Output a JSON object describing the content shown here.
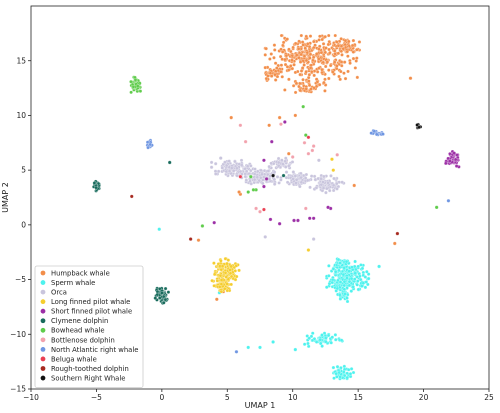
{
  "chart_data": {
    "type": "scatter",
    "title": "",
    "xlabel": "UMAP 1",
    "ylabel": "UMAP 2",
    "xlim": [
      -10,
      25
    ],
    "ylim": [
      -15,
      20
    ],
    "xticks": [
      -10,
      -5,
      0,
      5,
      10,
      15,
      20,
      25
    ],
    "yticks": [
      -15,
      -10,
      -5,
      0,
      5,
      10,
      15
    ],
    "grid": false,
    "legend_position": "lower-left",
    "series": [
      {
        "name": "Humpback whale",
        "color": "#f28e4a",
        "clusters": [
          {
            "cx": 11.5,
            "cy": 15.3,
            "rx": 3.6,
            "ry": 2.0,
            "n": 320
          },
          {
            "cx": 14.0,
            "cy": 16.2,
            "rx": 0.9,
            "ry": 0.9,
            "n": 50
          },
          {
            "cx": 11.2,
            "cy": 12.7,
            "rx": 1.8,
            "ry": 0.7,
            "n": 50
          },
          {
            "cx": 8.4,
            "cy": 13.8,
            "rx": 0.8,
            "ry": 0.6,
            "n": 30
          }
        ],
        "points": [
          [
            9.0,
            9.8
          ],
          [
            8.2,
            9.1
          ],
          [
            10.2,
            10.0
          ],
          [
            9.7,
            6.5
          ],
          [
            9.5,
            5.8
          ],
          [
            6.0,
            2.8
          ],
          [
            5.9,
            3.0
          ],
          [
            5.3,
            9.8
          ],
          [
            19.0,
            13.4
          ],
          [
            13.2,
            3.5
          ],
          [
            14.7,
            3.6
          ],
          [
            17.8,
            -1.7
          ],
          [
            4.7,
            -6.1
          ],
          [
            4.2,
            -6.8
          ],
          [
            2.8,
            -1.4
          ]
        ]
      },
      {
        "name": "Sperm whale",
        "color": "#4ef2ee",
        "clusters": [
          {
            "cx": 14.2,
            "cy": -4.8,
            "rx": 1.6,
            "ry": 1.5,
            "n": 220
          },
          {
            "cx": 13.9,
            "cy": -3.5,
            "rx": 1.0,
            "ry": 0.6,
            "n": 40
          },
          {
            "cx": 13.8,
            "cy": -6.4,
            "rx": 0.7,
            "ry": 0.6,
            "n": 30
          },
          {
            "cx": 12.4,
            "cy": -10.5,
            "rx": 1.5,
            "ry": 0.6,
            "n": 70
          },
          {
            "cx": 13.9,
            "cy": -13.5,
            "rx": 0.8,
            "ry": 0.6,
            "n": 50
          }
        ],
        "points": [
          [
            6.6,
            -11.2
          ],
          [
            7.5,
            -11.2
          ],
          [
            8.5,
            -10.7
          ],
          [
            10.2,
            -11.4
          ],
          [
            16.6,
            -3.8
          ],
          [
            -0.2,
            -0.4
          ],
          [
            4.4,
            -6.2
          ]
        ]
      },
      {
        "name": "Orca",
        "color": "#c9c5dd",
        "clusters": [
          {
            "cx": 5.4,
            "cy": 5.1,
            "rx": 1.6,
            "ry": 0.8,
            "n": 120
          },
          {
            "cx": 7.6,
            "cy": 4.4,
            "rx": 1.5,
            "ry": 0.7,
            "n": 120
          },
          {
            "cx": 10.4,
            "cy": 4.2,
            "rx": 1.0,
            "ry": 0.7,
            "n": 80
          },
          {
            "cx": 12.6,
            "cy": 3.8,
            "rx": 1.3,
            "ry": 0.9,
            "n": 90
          },
          {
            "cx": 9.0,
            "cy": 5.6,
            "rx": 1.0,
            "ry": 0.5,
            "n": 50
          }
        ],
        "points": [
          [
            4.5,
            6.1
          ],
          [
            12.0,
            5.9
          ],
          [
            7.9,
            -1.1
          ],
          [
            11.6,
            -1.3
          ]
        ]
      },
      {
        "name": "Long finned pilot whale",
        "color": "#f5cd2e",
        "clusters": [
          {
            "cx": 4.9,
            "cy": -4.2,
            "rx": 1.0,
            "ry": 1.1,
            "n": 130
          },
          {
            "cx": 4.6,
            "cy": -5.5,
            "rx": 0.8,
            "ry": 0.7,
            "n": 50
          }
        ],
        "points": [
          [
            13.0,
            6.0
          ],
          [
            13.1,
            5.0
          ],
          [
            11.2,
            -2.3
          ],
          [
            5.3,
            -3.8
          ]
        ]
      },
      {
        "name": "Short finned pilot whale",
        "color": "#9c2fa6",
        "clusters": [
          {
            "cx": 22.2,
            "cy": 6.0,
            "rx": 0.5,
            "ry": 0.7,
            "n": 60
          }
        ],
        "points": [
          [
            9.4,
            9.4
          ],
          [
            8.4,
            7.6
          ],
          [
            7.8,
            3.5
          ],
          [
            8.0,
            4.2
          ],
          [
            7.8,
            5.9
          ],
          [
            8.3,
            0.5
          ],
          [
            10.1,
            0.4
          ],
          [
            10.4,
            0.4
          ],
          [
            11.3,
            0.6
          ],
          [
            11.6,
            0.6
          ],
          [
            12.9,
            1.5
          ],
          [
            12.7,
            1.6
          ],
          [
            9.0,
            0.1
          ],
          [
            4.0,
            0.2
          ]
        ]
      },
      {
        "name": "Clymene dolphin",
        "color": "#186b5c",
        "clusters": [
          {
            "cx": 0.0,
            "cy": -6.5,
            "rx": 0.5,
            "ry": 0.7,
            "n": 60
          },
          {
            "cx": -5.0,
            "cy": 3.6,
            "rx": 0.2,
            "ry": 0.5,
            "n": 20
          }
        ],
        "points": [
          [
            0.6,
            5.7
          ],
          [
            9.3,
            4.5
          ]
        ]
      },
      {
        "name": "Bowhead whale",
        "color": "#5fcc4b",
        "clusters": [
          {
            "cx": -2.0,
            "cy": 12.8,
            "rx": 0.4,
            "ry": 0.7,
            "n": 55
          }
        ],
        "points": [
          [
            10.8,
            10.8
          ],
          [
            6.8,
            4.4
          ],
          [
            7.2,
            3.2
          ],
          [
            7.0,
            3.2
          ],
          [
            6.6,
            3.0
          ],
          [
            21.0,
            1.6
          ],
          [
            3.1,
            -0.1
          ],
          [
            11.0,
            8.2
          ]
        ]
      },
      {
        "name": "Bottlenose dolphin",
        "color": "#f2a2ad",
        "clusters": [],
        "points": [
          [
            13.4,
            6.4
          ],
          [
            11.6,
            7.2
          ],
          [
            11.5,
            6.8
          ],
          [
            11.2,
            6.5
          ],
          [
            10.9,
            7.5
          ],
          [
            10.0,
            6.2
          ],
          [
            6.0,
            9.1
          ],
          [
            6.4,
            7.6
          ],
          [
            9.1,
            9.2
          ],
          [
            7.2,
            1.5
          ],
          [
            7.5,
            1.2
          ],
          [
            11.0,
            1.5
          ]
        ]
      },
      {
        "name": "North Atlantic right whale",
        "color": "#6f96e2",
        "clusters": [
          {
            "cx": 16.5,
            "cy": 8.4,
            "rx": 0.5,
            "ry": 0.3,
            "n": 15
          },
          {
            "cx": -0.9,
            "cy": 7.4,
            "rx": 0.2,
            "ry": 0.4,
            "n": 15
          }
        ],
        "points": [
          [
            21.9,
            2.2
          ],
          [
            5.7,
            -11.6
          ]
        ]
      },
      {
        "name": "Beluga whale",
        "color": "#ea3f52",
        "clusters": [],
        "points": [
          [
            6.0,
            4.4
          ],
          [
            11.2,
            8.0
          ],
          [
            7.8,
            1.4
          ]
        ]
      },
      {
        "name": "Rough-toothed dolphin",
        "color": "#a6291f",
        "clusters": [],
        "points": [
          [
            -2.3,
            2.6
          ],
          [
            2.2,
            -1.3
          ],
          [
            18.0,
            -0.8
          ]
        ]
      },
      {
        "name": "Southern Right Whale",
        "color": "#111111",
        "clusters": [
          {
            "cx": 19.6,
            "cy": 9.0,
            "rx": 0.2,
            "ry": 0.2,
            "n": 8
          }
        ],
        "points": [
          [
            8.5,
            4.5
          ]
        ]
      }
    ]
  }
}
